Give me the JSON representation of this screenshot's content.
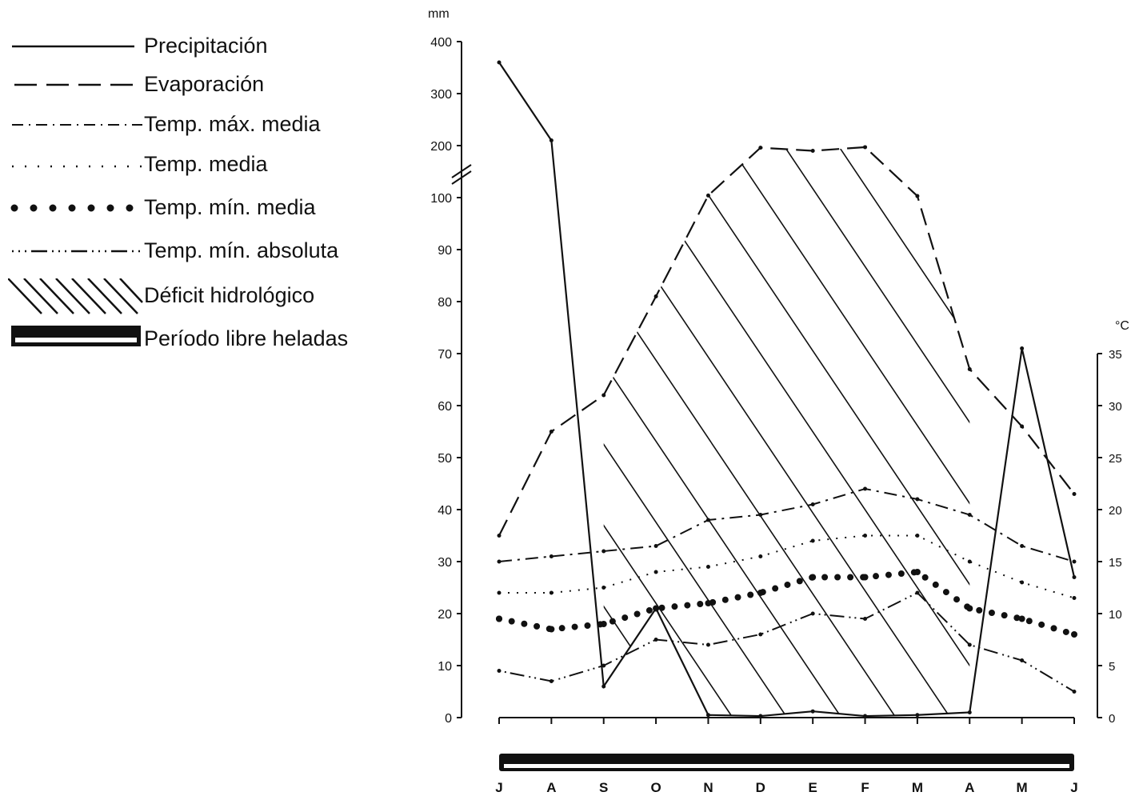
{
  "legend": {
    "items": [
      {
        "key": "precipitacion",
        "label": "Precipitación"
      },
      {
        "key": "evaporacion",
        "label": "Evaporación"
      },
      {
        "key": "tmax",
        "label": "Temp. máx. media"
      },
      {
        "key": "tmed",
        "label": "Temp. media"
      },
      {
        "key": "tmin",
        "label": "Temp. mín. media"
      },
      {
        "key": "tminabs",
        "label": "Temp. mín. absoluta"
      },
      {
        "key": "deficit",
        "label": "Déficit hidrológico"
      },
      {
        "key": "heladas",
        "label": "Período libre heladas"
      }
    ]
  },
  "chart_data": {
    "type": "line",
    "categories": [
      "J",
      "A",
      "S",
      "O",
      "N",
      "D",
      "E",
      "F",
      "M",
      "A",
      "M",
      "J"
    ],
    "left_axis": {
      "unit": "mm",
      "ticks_lower": [
        0,
        10,
        20,
        30,
        40,
        50,
        60,
        70,
        80,
        90,
        100
      ],
      "ticks_upper": [
        200,
        300,
        400
      ],
      "scale": "broken between 100 and 200"
    },
    "right_axis": {
      "unit": "°C",
      "ticks": [
        0,
        5,
        10,
        15,
        20,
        25,
        30,
        35
      ]
    },
    "series": [
      {
        "name": "Precipitación",
        "axis": "mm",
        "values": [
          360,
          210,
          6,
          21,
          0.5,
          0.3,
          1.2,
          0.3,
          0.5,
          1,
          71,
          27
        ]
      },
      {
        "name": "Evaporación",
        "axis": "mm",
        "values": [
          35,
          55,
          62,
          81,
          104,
          196,
          190,
          197,
          103,
          67,
          56,
          43
        ]
      },
      {
        "name": "Temp. máx. media",
        "axis": "°C",
        "values": [
          15,
          15.5,
          16,
          16.5,
          19,
          19.5,
          20.5,
          22,
          21,
          19.5,
          16.5,
          15
        ]
      },
      {
        "name": "Temp. media",
        "axis": "°C",
        "values": [
          12,
          12,
          12.5,
          14,
          14.5,
          15.5,
          17,
          17.5,
          17.5,
          15,
          13,
          11.5
        ]
      },
      {
        "name": "Temp. mín. media",
        "axis": "°C",
        "values": [
          9.5,
          8.5,
          9,
          10.5,
          11,
          12,
          13.5,
          13.5,
          14,
          10.5,
          9.5,
          8
        ]
      },
      {
        "name": "Temp. mín. absoluta",
        "axis": "°C",
        "values": [
          4.5,
          3.5,
          5,
          7.5,
          7,
          8,
          10,
          9.5,
          12,
          7,
          5.5,
          2.5
        ]
      }
    ],
    "frost_free_period": [
      "J",
      "J"
    ]
  },
  "colors": {
    "ink": "#111111",
    "background": "#ffffff"
  }
}
